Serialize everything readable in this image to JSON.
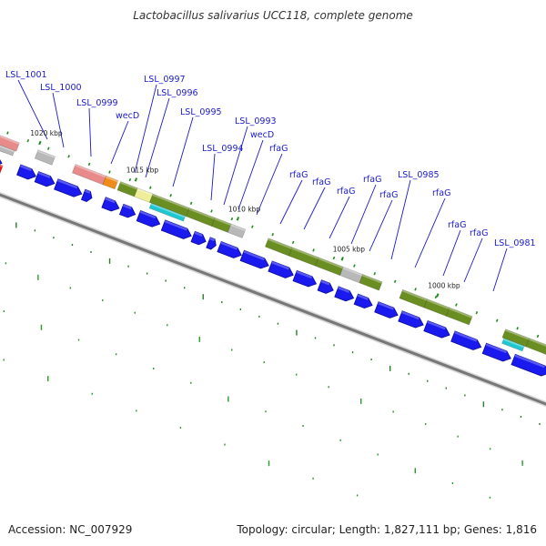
{
  "title": "Lactobacillus salivarius UCC118, complete genome",
  "accession": "Accession: NC_007929",
  "stats": "Topology: circular; Length: 1,827,111 bp; Genes: 1,816",
  "scale_labels": [
    "1020 kbp",
    "1015 kbp",
    "1010 kbp",
    "1005 kbp",
    "1000 kbp"
  ],
  "gene_labels": [
    "LSL_1001",
    "LSL_1000",
    "LSL_0999",
    "wecD",
    "LSL_0997",
    "LSL_0996",
    "LSL_0995",
    "LSL_0994",
    "LSL_0993",
    "wecD",
    "rfaG",
    "rfaG",
    "rfaG",
    "rfaG",
    "rfaG",
    "rfaG",
    "LSL_0985",
    "rfaG",
    "rfaG",
    "rfaG",
    "LSL_0981"
  ],
  "colors": {
    "cds": "#1a1aee",
    "cds_dark": "#0a0a99",
    "olive": "#6b8e23",
    "grey_feature": "#b8b8b8",
    "pink": "#e88a8a",
    "orange": "#f08c1a",
    "cyan": "#1fc8d0",
    "pale_yellow": "#eeee9a",
    "red": "#ee1111",
    "tick_green": "#228b22",
    "backbone": "#777777",
    "label_blue": "#1a1acc"
  }
}
